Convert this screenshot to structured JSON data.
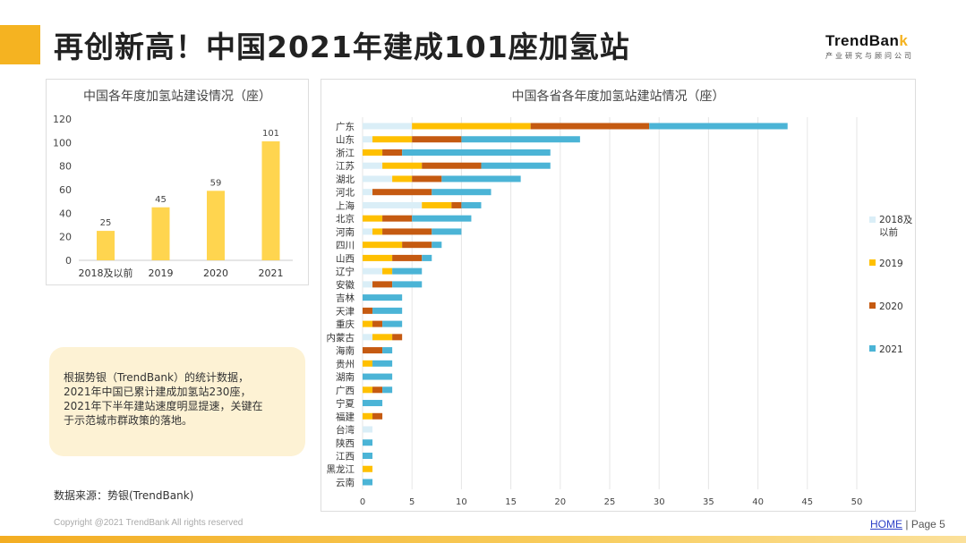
{
  "header": {
    "title": "再创新高！中国2021年建成101座加氢站",
    "logo_name": "TrendBank",
    "logo_sub": "产业研究与顾问公司"
  },
  "note": {
    "lines": [
      "根据势银（TrendBank）的统计数据，",
      "2021年中国已累计建成加氢站230座，",
      "2021年下半年建站速度明显提速，关键在",
      "于示范城市群政策的落地。"
    ]
  },
  "source": "数据来源：势银(TrendBank)",
  "footer": {
    "copyright": "Copyright @2021 TrendBank All rights reserved",
    "home": "HOME",
    "page_sep": "|",
    "page": "Page 5"
  },
  "colors": {
    "accent": "#f5b321",
    "bar_yellow": "#ffd54f",
    "s2018": "#daeef7",
    "s2019": "#ffc000",
    "s2020": "#c55a11",
    "s2021": "#4bb4d6"
  },
  "chart_data": [
    {
      "type": "bar",
      "title": "中国各年度加氢站建设情况（座）",
      "categories": [
        "2018及以前",
        "2019",
        "2020",
        "2021"
      ],
      "values": [
        25,
        45,
        59,
        101
      ],
      "ylim": [
        0,
        120
      ],
      "yticks": [
        0,
        20,
        40,
        60,
        80,
        100,
        120
      ],
      "grid": false
    },
    {
      "type": "bar",
      "orientation": "horizontal",
      "stacked": true,
      "title": "中国各省各年度加氢站建站情况（座）",
      "legend": "right",
      "grid": true,
      "xlim": [
        0,
        50
      ],
      "xticks": [
        0,
        5,
        10,
        15,
        20,
        25,
        30,
        35,
        40,
        45,
        50
      ],
      "categories": [
        "广东",
        "山东",
        "浙江",
        "江苏",
        "湖北",
        "河北",
        "上海",
        "北京",
        "河南",
        "四川",
        "山西",
        "辽宁",
        "安徽",
        "吉林",
        "天津",
        "重庆",
        "内蒙古",
        "海南",
        "贵州",
        "湖南",
        "广西",
        "宁夏",
        "福建",
        "台湾",
        "陕西",
        "江西",
        "黑龙江",
        "云南"
      ],
      "series": [
        {
          "name": "2018及以前",
          "color": "#daeef7",
          "values": [
            5,
            1,
            0,
            2,
            3,
            1,
            6,
            0,
            1,
            0,
            0,
            2,
            1,
            0,
            0,
            0,
            1,
            0,
            0,
            0,
            0,
            0,
            0,
            1,
            0,
            0,
            0,
            0
          ]
        },
        {
          "name": "2019",
          "color": "#ffc000",
          "values": [
            12,
            4,
            2,
            4,
            2,
            0,
            3,
            2,
            1,
            4,
            3,
            1,
            0,
            0,
            0,
            1,
            2,
            0,
            1,
            0,
            1,
            0,
            1,
            0,
            0,
            0,
            1,
            0
          ]
        },
        {
          "name": "2020",
          "color": "#c55a11",
          "values": [
            12,
            5,
            2,
            6,
            3,
            6,
            1,
            3,
            5,
            3,
            3,
            0,
            2,
            0,
            1,
            1,
            1,
            2,
            0,
            0,
            1,
            0,
            1,
            0,
            0,
            0,
            0,
            0
          ]
        },
        {
          "name": "2021",
          "color": "#4bb4d6",
          "values": [
            14,
            12,
            15,
            7,
            8,
            6,
            2,
            6,
            3,
            1,
            1,
            3,
            3,
            4,
            3,
            2,
            0,
            1,
            2,
            3,
            1,
            2,
            0,
            0,
            1,
            1,
            0,
            1
          ]
        }
      ]
    }
  ]
}
